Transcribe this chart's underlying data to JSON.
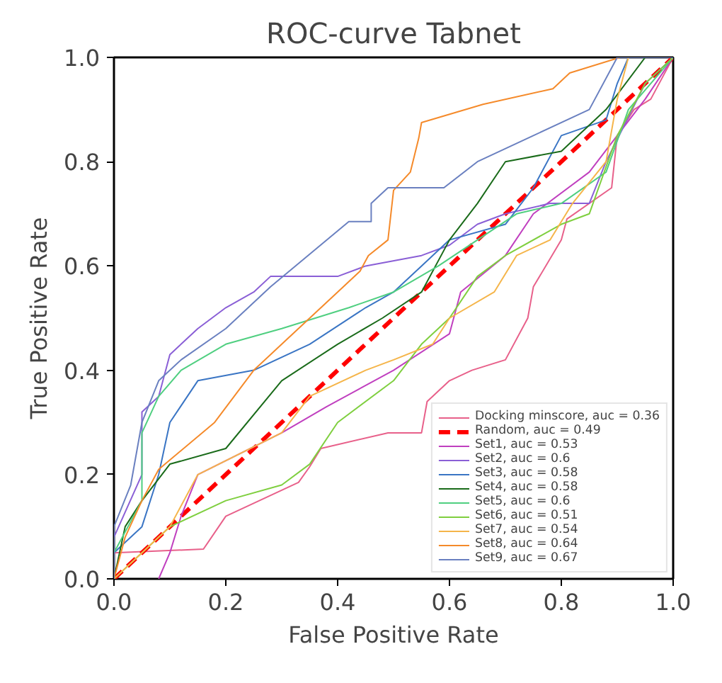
{
  "chart_data": {
    "type": "line",
    "title": "ROC-curve Tabnet",
    "xlabel": "False Positive Rate",
    "ylabel": "True Positive Rate",
    "xlim": [
      0,
      1
    ],
    "ylim": [
      0,
      1
    ],
    "xticks": [
      {
        "value": 0,
        "label": "0.0"
      },
      {
        "value": 0.2,
        "label": "0.2"
      },
      {
        "value": 0.4,
        "label": "0.4"
      },
      {
        "value": 0.6,
        "label": "0.6"
      },
      {
        "value": 0.8,
        "label": "0.8"
      },
      {
        "value": 1,
        "label": "1.0"
      }
    ],
    "yticks": [
      {
        "value": 0,
        "label": "0.0"
      },
      {
        "value": 0.2,
        "label": "0.2"
      },
      {
        "value": 0.4,
        "label": "0.4"
      },
      {
        "value": 0.6,
        "label": "0.6"
      },
      {
        "value": 0.8,
        "label": "0.8"
      },
      {
        "value": 1,
        "label": "1.0"
      }
    ],
    "grid": false,
    "legend": "bottom right",
    "line_style": "solid",
    "series": [
      {
        "name": "Docking minscore, auc = 0.36",
        "color": "#e8608a",
        "x": [
          0,
          0,
          0.16,
          0.2,
          0.33,
          0.35,
          0.37,
          0.49,
          0.55,
          0.56,
          0.6,
          0.64,
          0.7,
          0.74,
          0.75,
          0.8,
          0.81,
          0.89,
          0.9,
          0.93,
          0.96,
          1
        ],
        "values": [
          0,
          0.05,
          0.057,
          0.12,
          0.185,
          0.215,
          0.25,
          0.28,
          0.28,
          0.34,
          0.38,
          0.4,
          0.42,
          0.5,
          0.56,
          0.65,
          0.69,
          0.75,
          0.85,
          0.9,
          0.92,
          1
        ]
      },
      {
        "name": "Random, auc = 0.49",
        "color": "#ff0000",
        "line_style": "dashed",
        "x": [
          0,
          1
        ],
        "values": [
          0,
          1
        ]
      },
      {
        "name": "Set1, auc = 0.53",
        "color": "#c03fbf",
        "x": [
          0.08,
          0.1,
          0.12,
          0.15,
          0.3,
          0.38,
          0.5,
          0.6,
          0.62,
          0.7,
          0.75,
          0.85,
          0.9,
          0.95,
          1
        ],
        "values": [
          0,
          0.05,
          0.12,
          0.2,
          0.28,
          0.33,
          0.4,
          0.47,
          0.55,
          0.62,
          0.7,
          0.78,
          0.85,
          0.92,
          1
        ]
      },
      {
        "name": "Set2, auc = 0.6",
        "color": "#8a5fd6",
        "x": [
          0,
          0,
          0.05,
          0.05,
          0.08,
          0.1,
          0.15,
          0.2,
          0.25,
          0.28,
          0.4,
          0.45,
          0.55,
          0.6,
          0.65,
          0.7,
          0.78,
          0.85,
          0.88,
          0.95,
          1
        ],
        "values": [
          0,
          0.08,
          0.2,
          0.32,
          0.35,
          0.43,
          0.48,
          0.52,
          0.55,
          0.58,
          0.58,
          0.6,
          0.62,
          0.64,
          0.68,
          0.7,
          0.72,
          0.72,
          0.8,
          0.95,
          1
        ]
      },
      {
        "name": "Set3, auc = 0.58",
        "color": "#3a75c4",
        "x": [
          0,
          0,
          0.05,
          0.08,
          0.1,
          0.15,
          0.25,
          0.35,
          0.45,
          0.5,
          0.55,
          0.6,
          0.7,
          0.75,
          0.8,
          0.88,
          0.9,
          0.92,
          1
        ],
        "values": [
          0,
          0.05,
          0.1,
          0.2,
          0.3,
          0.38,
          0.4,
          0.45,
          0.52,
          0.55,
          0.6,
          0.65,
          0.68,
          0.75,
          0.85,
          0.88,
          0.95,
          1,
          1
        ]
      },
      {
        "name": "Set4, auc = 0.58",
        "color": "#1a6b1a",
        "x": [
          0,
          0.02,
          0.05,
          0.1,
          0.2,
          0.3,
          0.4,
          0.48,
          0.55,
          0.6,
          0.65,
          0.7,
          0.8,
          0.88,
          0.95,
          1
        ],
        "values": [
          0,
          0.1,
          0.15,
          0.22,
          0.25,
          0.38,
          0.45,
          0.5,
          0.55,
          0.65,
          0.72,
          0.8,
          0.82,
          0.9,
          1,
          1
        ]
      },
      {
        "name": "Set5, auc = 0.6",
        "color": "#4fcf80",
        "x": [
          0,
          0,
          0.05,
          0.05,
          0.08,
          0.12,
          0.2,
          0.3,
          0.42,
          0.5,
          0.58,
          0.65,
          0.72,
          0.8,
          0.88,
          0.92,
          1
        ],
        "values": [
          0,
          0.05,
          0.15,
          0.28,
          0.35,
          0.4,
          0.45,
          0.48,
          0.52,
          0.55,
          0.6,
          0.65,
          0.7,
          0.72,
          0.78,
          0.9,
          1
        ]
      },
      {
        "name": "Set6, auc = 0.51",
        "color": "#7fcf3f",
        "x": [
          0,
          0.05,
          0.1,
          0.2,
          0.3,
          0.35,
          0.4,
          0.5,
          0.55,
          0.6,
          0.65,
          0.7,
          0.8,
          0.85,
          0.9,
          0.95,
          1
        ],
        "values": [
          0,
          0.05,
          0.1,
          0.15,
          0.18,
          0.22,
          0.3,
          0.38,
          0.45,
          0.5,
          0.58,
          0.62,
          0.68,
          0.7,
          0.85,
          0.95,
          1
        ]
      },
      {
        "name": "Set7, auc = 0.54",
        "color": "#f5b54a",
        "x": [
          0,
          0.05,
          0.1,
          0.15,
          0.3,
          0.35,
          0.45,
          0.5,
          0.57,
          0.6,
          0.68,
          0.72,
          0.78,
          0.82,
          0.88,
          0.9,
          0.92,
          1
        ],
        "values": [
          0,
          0.05,
          0.1,
          0.2,
          0.28,
          0.35,
          0.4,
          0.42,
          0.45,
          0.5,
          0.55,
          0.62,
          0.65,
          0.72,
          0.8,
          0.92,
          1,
          1
        ]
      },
      {
        "name": "Set8, auc = 0.64",
        "color": "#f58a2a",
        "x": [
          0,
          0.02,
          0.05,
          0.08,
          0.18,
          0.25,
          0.3,
          0.4,
          0.44,
          0.455,
          0.49,
          0.5,
          0.53,
          0.545,
          0.55,
          0.66,
          0.785,
          0.815,
          0.905,
          1
        ],
        "values": [
          0,
          0.08,
          0.15,
          0.21,
          0.3,
          0.4,
          0.45,
          0.55,
          0.59,
          0.62,
          0.65,
          0.745,
          0.78,
          0.845,
          0.875,
          0.91,
          0.94,
          0.97,
          1,
          1
        ]
      },
      {
        "name": "Set9, auc = 0.67",
        "color": "#6a80c0",
        "x": [
          0,
          0,
          0.03,
          0.05,
          0.08,
          0.12,
          0.2,
          0.28,
          0.42,
          0.46,
          0.46,
          0.49,
          0.59,
          0.65,
          0.75,
          0.85,
          0.9,
          1
        ],
        "values": [
          0,
          0.1,
          0.18,
          0.3,
          0.38,
          0.42,
          0.48,
          0.56,
          0.685,
          0.685,
          0.72,
          0.75,
          0.75,
          0.8,
          0.85,
          0.9,
          1,
          1
        ]
      }
    ]
  }
}
